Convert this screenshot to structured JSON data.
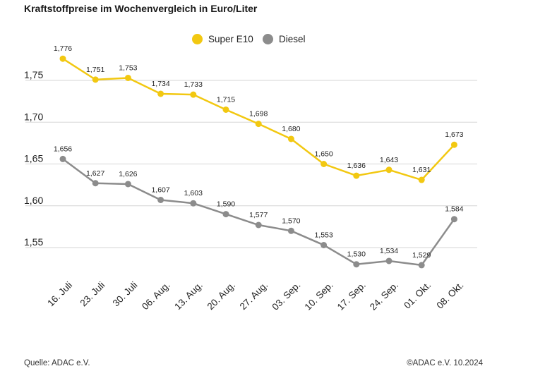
{
  "title": "Kraftstoffpreise im Wochenvergleich in Euro/Liter",
  "source": "Quelle: ADAC e.V.",
  "copyright": "©ADAC e.V. 10.2024",
  "chart_data": {
    "type": "line",
    "categories": [
      "16. Juli",
      "23. Juli",
      "30. Juli",
      "06. Aug.",
      "13. Aug.",
      "20. Aug.",
      "27. Aug.",
      "03. Sep.",
      "10. Sep.",
      "17. Sep.",
      "24. Sep.",
      "01. Okt.",
      "08. Okt."
    ],
    "series": [
      {
        "name": "Super E10",
        "color": "#f2c811",
        "values": [
          1.776,
          1.751,
          1.753,
          1.734,
          1.733,
          1.715,
          1.698,
          1.68,
          1.65,
          1.636,
          1.643,
          1.631,
          1.673
        ],
        "labels": [
          "1,776",
          "1,751",
          "1,753",
          "1,734",
          "1,733",
          "1,715",
          "1,698",
          "1,680",
          "1,650",
          "1,636",
          "1,643",
          "1,631",
          "1,673"
        ]
      },
      {
        "name": "Diesel",
        "color": "#8c8c8c",
        "values": [
          1.656,
          1.627,
          1.626,
          1.607,
          1.603,
          1.59,
          1.577,
          1.57,
          1.553,
          1.53,
          1.534,
          1.529,
          1.584
        ],
        "labels": [
          "1,656",
          "1,627",
          "1,626",
          "1,607",
          "1,603",
          "1,590",
          "1,577",
          "1,570",
          "1,553",
          "1,530",
          "1,534",
          "1,529",
          "1,584"
        ]
      }
    ],
    "yticks": [
      1.55,
      1.6,
      1.65,
      1.7,
      1.75
    ],
    "ytick_labels": [
      "1,55",
      "1,60",
      "1,65",
      "1,70",
      "1,75"
    ],
    "grid": true,
    "legend": "top-center"
  }
}
